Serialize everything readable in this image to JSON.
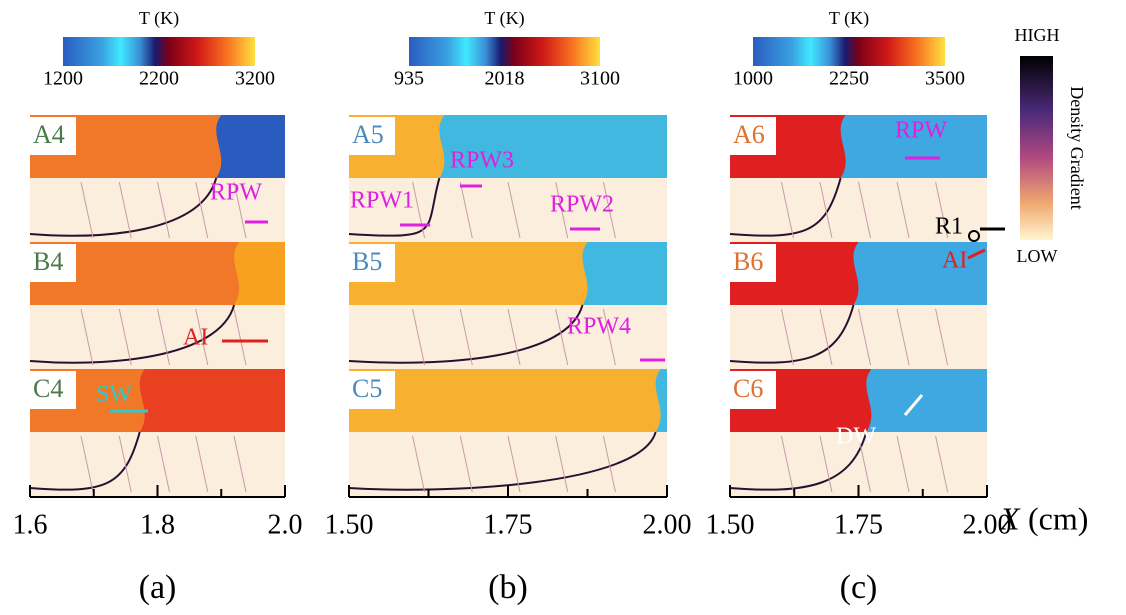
{
  "colorbars": [
    {
      "label": "T (K)",
      "ticks": [
        "1200",
        "2200",
        "3200"
      ]
    },
    {
      "label": "T (K)",
      "ticks": [
        "935",
        "2018",
        "3100"
      ]
    },
    {
      "label": "T (K)",
      "ticks": [
        "1000",
        "2250",
        "3500"
      ]
    }
  ],
  "density_colorbar": {
    "high": "HIGH",
    "low": "LOW",
    "label": "Density Gradient"
  },
  "panels": [
    {
      "rows": [
        "A4",
        "B4",
        "C4"
      ],
      "x_ticks": [
        "1.6",
        "1.8",
        "2.0"
      ],
      "caption": "(a)"
    },
    {
      "rows": [
        "A5",
        "B5",
        "C5"
      ],
      "x_ticks": [
        "1.50",
        "1.75",
        "2.00"
      ],
      "caption": "(b)"
    },
    {
      "rows": [
        "A6",
        "B6",
        "C6"
      ],
      "x_ticks": [
        "1.50",
        "1.75",
        "2.00"
      ],
      "caption": "(c)"
    }
  ],
  "annotations": {
    "a": [
      "RPW",
      "AI",
      "SW"
    ],
    "b": [
      "RPW3",
      "RPW1",
      "RPW2",
      "RPW4"
    ],
    "c": [
      "RPW",
      "R1",
      "AI",
      "DW"
    ]
  },
  "x_axis": {
    "symbol": "X",
    "unit": "(cm)"
  }
}
